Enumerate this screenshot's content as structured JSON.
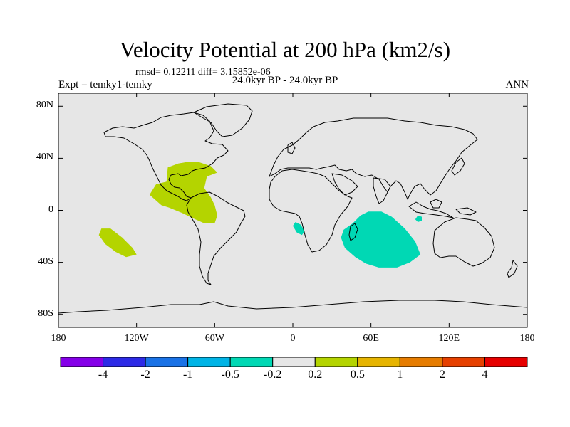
{
  "title": "Velocity Potential at 200 hPa (km2/s)",
  "stats": "rmsd= 0.12211 diff= 3.15852e-06",
  "period": "24.0kyr BP - 24.0kyr BP",
  "expt": "Expt = temky1-temky",
  "season": "ANN",
  "map": {
    "lon_range": [
      -180,
      180
    ],
    "lat_range": [
      -90,
      90
    ],
    "ocean_color": "#e6e6e6",
    "coastline_color": "#000000",
    "lat_ticks": [
      {
        "value": 80,
        "label": "80N"
      },
      {
        "value": 40,
        "label": "40N"
      },
      {
        "value": 0,
        "label": "0"
      },
      {
        "value": -40,
        "label": "40S"
      },
      {
        "value": -80,
        "label": "80S"
      }
    ],
    "lon_ticks": [
      {
        "value": -180,
        "label": "180"
      },
      {
        "value": -120,
        "label": "120W"
      },
      {
        "value": -60,
        "label": "60W"
      },
      {
        "value": 0,
        "label": "0"
      },
      {
        "value": 60,
        "label": "60E"
      },
      {
        "value": 120,
        "label": "120E"
      },
      {
        "value": 180,
        "label": "180"
      }
    ],
    "anomalies": [
      {
        "name": "caribbean-positive-anomaly",
        "band": "0.2 to 0.5",
        "color": "#b4d400",
        "points": [
          [
            -101,
            4
          ],
          [
            -110,
            12
          ],
          [
            -105,
            20
          ],
          [
            -97,
            22
          ],
          [
            -96,
            33
          ],
          [
            -88,
            36
          ],
          [
            -82,
            37
          ],
          [
            -72,
            37
          ],
          [
            -63,
            34
          ],
          [
            -58,
            29
          ],
          [
            -66,
            26
          ],
          [
            -68,
            17
          ],
          [
            -63,
            10
          ],
          [
            -60,
            4
          ],
          [
            -58,
            -4
          ],
          [
            -60,
            -10
          ],
          [
            -68,
            -10
          ],
          [
            -77,
            -6
          ],
          [
            -85,
            -2
          ],
          [
            -95,
            2
          ]
        ]
      },
      {
        "name": "south-pacific-positive-anomaly",
        "band": "0.2 to 0.5",
        "color": "#b4d400",
        "points": [
          [
            -147,
            -14
          ],
          [
            -149,
            -19
          ],
          [
            -144,
            -26
          ],
          [
            -136,
            -32
          ],
          [
            -128,
            -36
          ],
          [
            -120,
            -34
          ],
          [
            -123,
            -29
          ],
          [
            -131,
            -21
          ],
          [
            -140,
            -14
          ]
        ]
      },
      {
        "name": "indian-ocean-negative-anomaly",
        "band": "-0.5 to -0.2",
        "color": "#00d8b4",
        "points": [
          [
            58,
            -1
          ],
          [
            52,
            -4
          ],
          [
            46,
            -10
          ],
          [
            39,
            -15
          ],
          [
            37,
            -21
          ],
          [
            40,
            -29
          ],
          [
            48,
            -36
          ],
          [
            56,
            -41
          ],
          [
            66,
            -44
          ],
          [
            80,
            -44
          ],
          [
            90,
            -40
          ],
          [
            98,
            -34
          ],
          [
            94,
            -24
          ],
          [
            86,
            -14
          ],
          [
            76,
            -5
          ],
          [
            68,
            -1
          ]
        ]
      },
      {
        "name": "atlantic-negative-anomaly",
        "band": "-0.5 to -0.2",
        "color": "#00d8b4",
        "points": [
          [
            2,
            -9
          ],
          [
            0,
            -12
          ],
          [
            3,
            -17
          ],
          [
            7,
            -19
          ],
          [
            9,
            -16
          ],
          [
            6,
            -11
          ]
        ]
      },
      {
        "name": "sumatra-negative-anomaly",
        "band": "-0.5 to -0.2",
        "color": "#00d8b4",
        "points": [
          [
            96,
            -4
          ],
          [
            94,
            -7
          ],
          [
            96,
            -9
          ],
          [
            99,
            -8
          ],
          [
            99,
            -5
          ]
        ]
      }
    ]
  },
  "colorbar": {
    "colors": [
      "#8500e8",
      "#2d2ae6",
      "#1a72e6",
      "#00b4e6",
      "#00d8b4",
      "#e6e6e6",
      "#b4d400",
      "#e6b400",
      "#e67c00",
      "#e64000",
      "#e60000"
    ],
    "labels": [
      "-4",
      "-2",
      "-1",
      "-0.5",
      "-0.2",
      "0.2",
      "0.5",
      "1",
      "2",
      "4"
    ]
  }
}
